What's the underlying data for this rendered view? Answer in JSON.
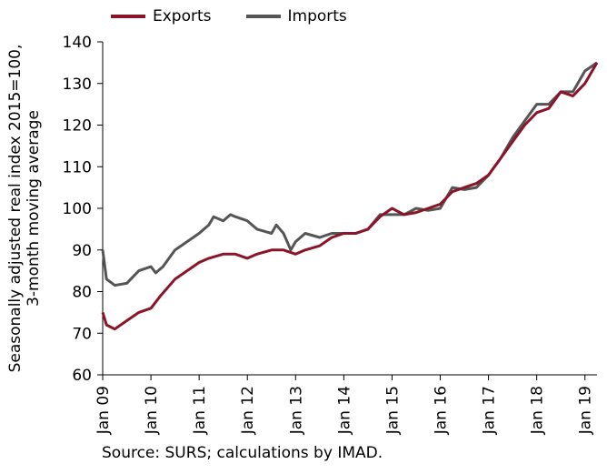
{
  "chart_data": {
    "type": "line",
    "title": "",
    "xlabel": "",
    "ylabel": [
      "Seasonally adjusted real index 2015=100,",
      "3-month moving average"
    ],
    "ylim": [
      60,
      140
    ],
    "yticks": [
      60,
      70,
      80,
      90,
      100,
      110,
      120,
      130,
      140
    ],
    "x_range": [
      2009.0,
      2019.25
    ],
    "xticks": [
      {
        "label": "Jan 09",
        "x": 2009
      },
      {
        "label": "Jan 10",
        "x": 2010
      },
      {
        "label": "Jan 11",
        "x": 2011
      },
      {
        "label": "Jan 12",
        "x": 2012
      },
      {
        "label": "Jan 13",
        "x": 2013
      },
      {
        "label": "Jan 14",
        "x": 2014
      },
      {
        "label": "Jan 15",
        "x": 2015
      },
      {
        "label": "Jan 16",
        "x": 2016
      },
      {
        "label": "Jan 17",
        "x": 2017
      },
      {
        "label": "Jan 18",
        "x": 2018
      },
      {
        "label": "Jan 19",
        "x": 2019
      }
    ],
    "grid": false,
    "legend_position": "top-left",
    "series": [
      {
        "name": "Exports",
        "color": "#8b1428",
        "points": [
          [
            2009.0,
            75
          ],
          [
            2009.08,
            72
          ],
          [
            2009.25,
            71
          ],
          [
            2009.5,
            73
          ],
          [
            2009.75,
            75
          ],
          [
            2010.0,
            76
          ],
          [
            2010.2,
            79
          ],
          [
            2010.5,
            83
          ],
          [
            2010.75,
            85
          ],
          [
            2011.0,
            87
          ],
          [
            2011.2,
            88
          ],
          [
            2011.5,
            89
          ],
          [
            2011.75,
            89
          ],
          [
            2012.0,
            88
          ],
          [
            2012.2,
            89
          ],
          [
            2012.5,
            90
          ],
          [
            2012.75,
            90
          ],
          [
            2013.0,
            89
          ],
          [
            2013.2,
            90
          ],
          [
            2013.5,
            91
          ],
          [
            2013.75,
            93
          ],
          [
            2014.0,
            94
          ],
          [
            2014.25,
            94
          ],
          [
            2014.5,
            95
          ],
          [
            2014.75,
            98
          ],
          [
            2015.0,
            100
          ],
          [
            2015.25,
            98.5
          ],
          [
            2015.5,
            99
          ],
          [
            2015.75,
            100
          ],
          [
            2016.0,
            101
          ],
          [
            2016.25,
            104
          ],
          [
            2016.5,
            105
          ],
          [
            2016.75,
            106
          ],
          [
            2017.0,
            108
          ],
          [
            2017.25,
            112
          ],
          [
            2017.5,
            116
          ],
          [
            2017.75,
            120
          ],
          [
            2018.0,
            123
          ],
          [
            2018.25,
            124
          ],
          [
            2018.5,
            128
          ],
          [
            2018.75,
            127
          ],
          [
            2019.0,
            130
          ],
          [
            2019.25,
            135
          ]
        ]
      },
      {
        "name": "Imports",
        "color": "#555555",
        "points": [
          [
            2009.0,
            90
          ],
          [
            2009.08,
            83
          ],
          [
            2009.25,
            81.5
          ],
          [
            2009.5,
            82
          ],
          [
            2009.75,
            85
          ],
          [
            2010.0,
            86
          ],
          [
            2010.1,
            84.5
          ],
          [
            2010.25,
            86
          ],
          [
            2010.5,
            90
          ],
          [
            2010.75,
            92
          ],
          [
            2011.0,
            94
          ],
          [
            2011.2,
            96
          ],
          [
            2011.3,
            98
          ],
          [
            2011.5,
            97
          ],
          [
            2011.65,
            98.5
          ],
          [
            2011.75,
            98
          ],
          [
            2012.0,
            97
          ],
          [
            2012.2,
            95
          ],
          [
            2012.5,
            94
          ],
          [
            2012.6,
            96
          ],
          [
            2012.75,
            94
          ],
          [
            2012.9,
            90
          ],
          [
            2013.0,
            92
          ],
          [
            2013.2,
            94
          ],
          [
            2013.5,
            93
          ],
          [
            2013.75,
            94
          ],
          [
            2014.0,
            94
          ],
          [
            2014.25,
            94
          ],
          [
            2014.5,
            95
          ],
          [
            2014.75,
            98.5
          ],
          [
            2015.0,
            98.5
          ],
          [
            2015.25,
            98.5
          ],
          [
            2015.5,
            100
          ],
          [
            2015.75,
            99.5
          ],
          [
            2016.0,
            100
          ],
          [
            2016.25,
            105
          ],
          [
            2016.5,
            104.5
          ],
          [
            2016.75,
            105
          ],
          [
            2017.0,
            108
          ],
          [
            2017.25,
            112
          ],
          [
            2017.5,
            117
          ],
          [
            2017.75,
            121
          ],
          [
            2018.0,
            125
          ],
          [
            2018.25,
            125
          ],
          [
            2018.5,
            128
          ],
          [
            2018.75,
            128
          ],
          [
            2019.0,
            133
          ],
          [
            2019.25,
            135
          ]
        ]
      }
    ]
  },
  "legend": [
    {
      "label": "Exports",
      "color": "#8b1428"
    },
    {
      "label": "Imports",
      "color": "#555555"
    }
  ],
  "source": "Source: SURS; calculations by IMAD."
}
